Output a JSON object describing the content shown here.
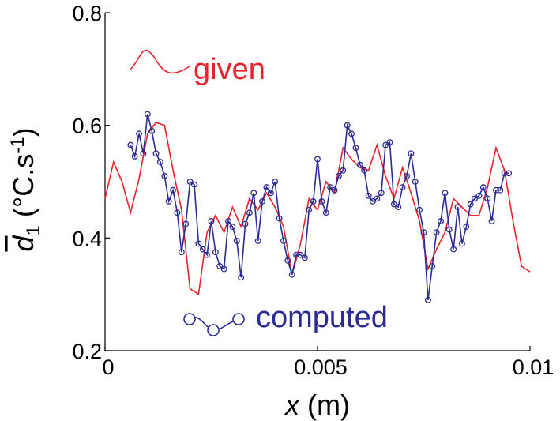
{
  "chart_data": {
    "type": "line",
    "xlabel_parts": [
      "x",
      " (m)"
    ],
    "ylabel_parts": [
      "d",
      "1",
      " (°C.s",
      "-1",
      ")"
    ],
    "xlim": [
      0,
      0.01
    ],
    "ylim": [
      0.2,
      0.8
    ],
    "xticks": [
      0,
      0.005,
      0.01
    ],
    "yticks": [
      0.2,
      0.4,
      0.6,
      0.8
    ],
    "series": [
      {
        "name": "given",
        "color": "#e8222a",
        "marker": "none",
        "x": [
          0,
          0.0002,
          0.0004,
          0.0006,
          0.0008,
          0.001,
          0.0012,
          0.0014,
          0.0016,
          0.0018,
          0.002,
          0.0022,
          0.0024,
          0.0026,
          0.0028,
          0.003,
          0.0032,
          0.0034,
          0.0036,
          0.0038,
          0.004,
          0.0042,
          0.0044,
          0.0046,
          0.0048,
          0.005,
          0.0052,
          0.0054,
          0.0056,
          0.0058,
          0.006,
          0.0062,
          0.0064,
          0.0066,
          0.0068,
          0.007,
          0.0072,
          0.0074,
          0.0076,
          0.0078,
          0.008,
          0.0082,
          0.0084,
          0.0086,
          0.0088,
          0.009,
          0.0092,
          0.0094,
          0.0096,
          0.0098,
          0.01
        ],
        "values": [
          0.47,
          0.535,
          0.5,
          0.445,
          0.505,
          0.585,
          0.605,
          0.6,
          0.52,
          0.45,
          0.31,
          0.3,
          0.41,
          0.44,
          0.41,
          0.455,
          0.42,
          0.47,
          0.45,
          0.48,
          0.455,
          0.42,
          0.335,
          0.39,
          0.47,
          0.45,
          0.5,
          0.48,
          0.56,
          0.54,
          0.525,
          0.52,
          0.565,
          0.51,
          0.47,
          0.525,
          0.48,
          0.43,
          0.345,
          0.38,
          0.41,
          0.47,
          0.455,
          0.44,
          0.44,
          0.49,
          0.56,
          0.52,
          0.43,
          0.35,
          0.34
        ]
      },
      {
        "name": "computed",
        "color": "#2b2b96",
        "marker": "circle",
        "x": [
          0.0006,
          0.0007,
          0.0008,
          0.0009,
          0.001,
          0.0011,
          0.0012,
          0.0013,
          0.0014,
          0.0015,
          0.0016,
          0.0017,
          0.0018,
          0.0019,
          0.002,
          0.0021,
          0.0022,
          0.0023,
          0.0024,
          0.0025,
          0.0026,
          0.0027,
          0.0028,
          0.0029,
          0.003,
          0.0031,
          0.0032,
          0.0033,
          0.0034,
          0.0035,
          0.0036,
          0.0037,
          0.0038,
          0.0039,
          0.004,
          0.0041,
          0.0042,
          0.0043,
          0.0044,
          0.0045,
          0.0046,
          0.0047,
          0.0048,
          0.0049,
          0.005,
          0.0051,
          0.0052,
          0.0053,
          0.0054,
          0.0055,
          0.0056,
          0.0057,
          0.0058,
          0.0059,
          0.006,
          0.0061,
          0.0062,
          0.0063,
          0.0064,
          0.0065,
          0.0066,
          0.0067,
          0.0068,
          0.0069,
          0.007,
          0.0071,
          0.0072,
          0.0073,
          0.0074,
          0.0075,
          0.0076,
          0.0077,
          0.0078,
          0.0079,
          0.008,
          0.0081,
          0.0082,
          0.0083,
          0.0084,
          0.0085,
          0.0086,
          0.0087,
          0.0088,
          0.0089,
          0.009,
          0.0091,
          0.0092,
          0.0093,
          0.0094,
          0.0095
        ],
        "values": [
          0.565,
          0.545,
          0.585,
          0.55,
          0.62,
          0.59,
          0.55,
          0.535,
          0.51,
          0.465,
          0.485,
          0.445,
          0.375,
          0.425,
          0.5,
          0.495,
          0.39,
          0.38,
          0.37,
          0.43,
          0.375,
          0.35,
          0.345,
          0.43,
          0.42,
          0.395,
          0.33,
          0.425,
          0.445,
          0.48,
          0.395,
          0.465,
          0.49,
          0.48,
          0.5,
          0.435,
          0.395,
          0.36,
          0.335,
          0.37,
          0.37,
          0.365,
          0.45,
          0.465,
          0.54,
          0.465,
          0.445,
          0.49,
          0.485,
          0.51,
          0.52,
          0.6,
          0.585,
          0.56,
          0.53,
          0.52,
          0.475,
          0.465,
          0.47,
          0.48,
          0.565,
          0.57,
          0.46,
          0.455,
          0.49,
          0.51,
          0.55,
          0.5,
          0.45,
          0.41,
          0.29,
          0.35,
          0.41,
          0.43,
          0.48,
          0.415,
          0.38,
          0.455,
          0.39,
          0.42,
          0.46,
          0.47,
          0.475,
          0.49,
          0.47,
          0.43,
          0.485,
          0.485,
          0.515,
          0.515
        ]
      }
    ]
  }
}
